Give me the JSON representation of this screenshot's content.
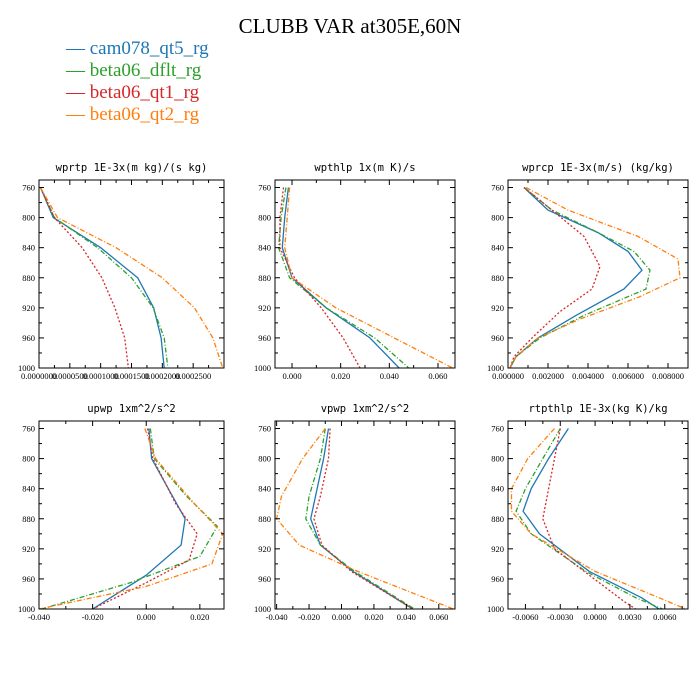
{
  "title": "CLUBB VAR at305E,60N",
  "legend": [
    {
      "name": "cam078_qt5_rg",
      "color": "#1f77b4"
    },
    {
      "name": "beta06_dflt_rg",
      "color": "#2ca02c"
    },
    {
      "name": "beta06_qt1_rg",
      "color": "#d62728"
    },
    {
      "name": "beta06_qt2_rg",
      "color": "#ff7f0e"
    }
  ],
  "chart_data": [
    {
      "type": "line",
      "title": "wprtp  1E-3x(m kg)/(s kg)",
      "xlim": [
        0.0,
        0.0003
      ],
      "ylim": [
        1000,
        750
      ],
      "xticks": [
        "0.0000000",
        "0.0000500",
        "0.0001000",
        "0.0001500",
        "0.0002000",
        "0.0002500"
      ],
      "xtick_values": [
        0,
        5e-05,
        0.0001,
        0.00015,
        0.0002,
        0.00025
      ],
      "yticks": [
        "760",
        "800",
        "840",
        "880",
        "920",
        "960",
        "1000"
      ],
      "ytick_values": [
        760,
        800,
        840,
        880,
        920,
        960,
        1000
      ],
      "series": [
        {
          "color": "#1f77b4",
          "dash": "",
          "points": [
            [
              2.5e-06,
              760
            ],
            [
              2.3e-05,
              800
            ],
            [
              0.0001,
              840
            ],
            [
              0.00016,
              880
            ],
            [
              0.000186,
              920
            ],
            [
              0.000198,
              960
            ],
            [
              0.000203,
              1000
            ]
          ]
        },
        {
          "color": "#2ca02c",
          "dash": "5,2,1,2",
          "points": [
            [
              2.5e-06,
              760
            ],
            [
              2.5e-05,
              800
            ],
            [
              9.5e-05,
              840
            ],
            [
              0.00015,
              880
            ],
            [
              0.000185,
              920
            ],
            [
              0.000203,
              960
            ],
            [
              0.000209,
              1000
            ]
          ]
        },
        {
          "color": "#d62728",
          "dash": "2,2",
          "points": [
            [
              2.5e-06,
              760
            ],
            [
              2.5e-05,
              800
            ],
            [
              7e-05,
              840
            ],
            [
              0.000102,
              880
            ],
            [
              0.000123,
              920
            ],
            [
              0.000139,
              960
            ],
            [
              0.000145,
              1000
            ]
          ]
        },
        {
          "color": "#ff7f0e",
          "dash": "5,2,1,2",
          "points": [
            [
              2.5e-06,
              760
            ],
            [
              3e-05,
              800
            ],
            [
              0.000125,
              840
            ],
            [
              0.0002,
              880
            ],
            [
              0.000252,
              920
            ],
            [
              0.000282,
              960
            ],
            [
              0.000298,
              1000
            ]
          ]
        }
      ]
    },
    {
      "type": "line",
      "title": "wpthlp  1x(m K)/s",
      "xlim": [
        -0.007,
        0.067
      ],
      "ylim": [
        1000,
        750
      ],
      "xticks": [
        "0.000",
        "0.020",
        "0.040",
        "0.060"
      ],
      "xtick_values": [
        0,
        0.02,
        0.04,
        0.06
      ],
      "yticks": [
        "760",
        "800",
        "840",
        "880",
        "920",
        "960",
        "1000"
      ],
      "ytick_values": [
        760,
        800,
        840,
        880,
        920,
        960,
        1000
      ],
      "series": [
        {
          "color": "#1f77b4",
          "dash": "",
          "points": [
            [
              -0.0015,
              760
            ],
            [
              -0.003,
              800
            ],
            [
              -0.004,
              840
            ],
            [
              0.0,
              880
            ],
            [
              0.014,
              920
            ],
            [
              0.032,
              960
            ],
            [
              0.044,
              1000
            ]
          ]
        },
        {
          "color": "#2ca02c",
          "dash": "5,2,1,2",
          "points": [
            [
              -0.0025,
              760
            ],
            [
              -0.0045,
              800
            ],
            [
              -0.0055,
              840
            ],
            [
              -0.001,
              880
            ],
            [
              0.014,
              920
            ],
            [
              0.034,
              960
            ],
            [
              0.048,
              1000
            ]
          ]
        },
        {
          "color": "#d62728",
          "dash": "2,2",
          "points": [
            [
              -0.0035,
              760
            ],
            [
              -0.005,
              800
            ],
            [
              -0.005,
              840
            ],
            [
              0.001,
              880
            ],
            [
              0.012,
              920
            ],
            [
              0.021,
              960
            ],
            [
              0.028,
              1000
            ]
          ]
        },
        {
          "color": "#ff7f0e",
          "dash": "5,2,1,2",
          "points": [
            [
              -0.001,
              760
            ],
            [
              -0.002,
              800
            ],
            [
              -0.003,
              840
            ],
            [
              0.0,
              880
            ],
            [
              0.018,
              920
            ],
            [
              0.042,
              960
            ],
            [
              0.066,
              1000
            ]
          ]
        }
      ]
    },
    {
      "type": "line",
      "title": "wprcp  1E-3x(m/s) (kg/kg)",
      "xlim": [
        0.0,
        0.009
      ],
      "ylim": [
        1000,
        750
      ],
      "xticks": [
        "0.000000",
        "0.002000",
        "0.004000",
        "0.006000",
        "0.008000"
      ],
      "xtick_values": [
        0,
        0.002,
        0.004,
        0.006,
        0.008
      ],
      "yticks": [
        "760",
        "800",
        "840",
        "880",
        "920",
        "960",
        "1000"
      ],
      "ytick_values": [
        760,
        800,
        840,
        880,
        920,
        960,
        1000
      ],
      "series": [
        {
          "color": "#1f77b4",
          "dash": "",
          "points": [
            [
              0.0008,
              760
            ],
            [
              0.002,
              790
            ],
            [
              0.0045,
              820
            ],
            [
              0.006,
              845
            ],
            [
              0.0067,
              870
            ],
            [
              0.0058,
              895
            ],
            [
              0.0034,
              930
            ],
            [
              0.0015,
              960
            ],
            [
              0.0004,
              985
            ],
            [
              0.0001,
              1000
            ]
          ]
        },
        {
          "color": "#2ca02c",
          "dash": "5,2,1,2",
          "points": [
            [
              0.0008,
              760
            ],
            [
              0.0022,
              790
            ],
            [
              0.0045,
              820
            ],
            [
              0.0063,
              845
            ],
            [
              0.0071,
              870
            ],
            [
              0.0069,
              895
            ],
            [
              0.0038,
              930
            ],
            [
              0.0016,
              960
            ],
            [
              0.0004,
              985
            ],
            [
              0.0001,
              1000
            ]
          ]
        },
        {
          "color": "#d62728",
          "dash": "2,2",
          "points": [
            [
              0.0008,
              760
            ],
            [
              0.0022,
              790
            ],
            [
              0.0038,
              825
            ],
            [
              0.0046,
              865
            ],
            [
              0.0042,
              895
            ],
            [
              0.0026,
              925
            ],
            [
              0.0012,
              960
            ],
            [
              0.0003,
              985
            ],
            [
              0.0001,
              1000
            ]
          ]
        },
        {
          "color": "#ff7f0e",
          "dash": "5,2,1,2",
          "points": [
            [
              0.0009,
              760
            ],
            [
              0.003,
              790
            ],
            [
              0.0065,
              825
            ],
            [
              0.0085,
              855
            ],
            [
              0.0086,
              880
            ],
            [
              0.0066,
              905
            ],
            [
              0.0036,
              935
            ],
            [
              0.0015,
              960
            ],
            [
              0.0004,
              985
            ],
            [
              0.0001,
              1000
            ]
          ]
        }
      ]
    },
    {
      "type": "line",
      "title": "upwp  1xm^2/s^2",
      "xlim": [
        -0.04,
        0.029
      ],
      "ylim": [
        1000,
        750
      ],
      "xticks": [
        "-0.040",
        "-0.020",
        "0.000",
        "0.020"
      ],
      "xtick_values": [
        -0.04,
        -0.02,
        0,
        0.02
      ],
      "yticks": [
        "760",
        "800",
        "840",
        "880",
        "920",
        "960",
        "1000"
      ],
      "ytick_values": [
        760,
        800,
        840,
        880,
        920,
        960,
        1000
      ],
      "series": [
        {
          "color": "#1f77b4",
          "dash": "",
          "points": [
            [
              0.001,
              760
            ],
            [
              0.002,
              800
            ],
            [
              0.009,
              845
            ],
            [
              0.0145,
              880
            ],
            [
              0.013,
              915
            ],
            [
              0.0,
              955
            ],
            [
              -0.02,
              1000
            ]
          ]
        },
        {
          "color": "#2ca02c",
          "dash": "5,2,1,2",
          "points": [
            [
              0.0015,
              760
            ],
            [
              0.003,
              800
            ],
            [
              0.015,
              850
            ],
            [
              0.0265,
              890
            ],
            [
              0.02,
              930
            ],
            [
              -0.006,
              965
            ],
            [
              -0.039,
              1000
            ]
          ]
        },
        {
          "color": "#d62728",
          "dash": "2,2",
          "points": [
            [
              0.0005,
              760
            ],
            [
              0.0025,
              800
            ],
            [
              0.011,
              860
            ],
            [
              0.019,
              900
            ],
            [
              0.016,
              935
            ],
            [
              0.0,
              965
            ],
            [
              -0.02,
              1000
            ]
          ]
        },
        {
          "color": "#ff7f0e",
          "dash": "5,2,1,2",
          "points": [
            [
              -0.0005,
              760
            ],
            [
              0.0035,
              800
            ],
            [
              0.018,
              860
            ],
            [
              0.0285,
              900
            ],
            [
              0.0245,
              940
            ],
            [
              0.0,
              970
            ],
            [
              -0.04,
              1000
            ]
          ]
        }
      ]
    },
    {
      "type": "line",
      "title": "vpwp  1xm^2/s^2",
      "xlim": [
        -0.041,
        0.07
      ],
      "ylim": [
        1000,
        750
      ],
      "xticks": [
        "-0.040",
        "-0.020",
        "0.000",
        "0.020",
        "0.040",
        "0.060"
      ],
      "xtick_values": [
        -0.04,
        -0.02,
        0,
        0.02,
        0.04,
        0.06
      ],
      "yticks": [
        "760",
        "800",
        "840",
        "880",
        "920",
        "960",
        "1000"
      ],
      "ytick_values": [
        760,
        800,
        840,
        880,
        920,
        960,
        1000
      ],
      "series": [
        {
          "color": "#1f77b4",
          "dash": "",
          "points": [
            [
              -0.008,
              760
            ],
            [
              -0.011,
              800
            ],
            [
              -0.016,
              850
            ],
            [
              -0.019,
              880
            ],
            [
              -0.013,
              915
            ],
            [
              0.007,
              950
            ],
            [
              0.044,
              1000
            ]
          ]
        },
        {
          "color": "#2ca02c",
          "dash": "5,2,1,2",
          "points": [
            [
              -0.01,
              760
            ],
            [
              -0.013,
              800
            ],
            [
              -0.02,
              850
            ],
            [
              -0.022,
              880
            ],
            [
              -0.013,
              915
            ],
            [
              0.008,
              950
            ],
            [
              0.045,
              1000
            ]
          ]
        },
        {
          "color": "#d62728",
          "dash": "2,2",
          "points": [
            [
              -0.007,
              760
            ],
            [
              -0.008,
              800
            ],
            [
              -0.013,
              850
            ],
            [
              -0.017,
              880
            ],
            [
              -0.012,
              915
            ],
            [
              0.006,
              950
            ],
            [
              0.044,
              1000
            ]
          ]
        },
        {
          "color": "#ff7f0e",
          "dash": "5,2,1,2",
          "points": [
            [
              -0.01,
              760
            ],
            [
              -0.024,
              800
            ],
            [
              -0.037,
              850
            ],
            [
              -0.04,
              880
            ],
            [
              -0.026,
              915
            ],
            [
              0.01,
              950
            ],
            [
              0.069,
              1000
            ]
          ]
        }
      ]
    },
    {
      "type": "line",
      "title": "rtpthlp  1E-3x(kg K)/kg",
      "xlim": [
        -0.0075,
        0.008
      ],
      "ylim": [
        1000,
        750
      ],
      "xticks": [
        "-0.0060",
        "-0.0030",
        "0.0000",
        "0.0030",
        "0.0060"
      ],
      "xtick_values": [
        -0.006,
        -0.003,
        0,
        0.003,
        0.006
      ],
      "yticks": [
        "760",
        "800",
        "840",
        "880",
        "920",
        "960",
        "1000"
      ],
      "ytick_values": [
        760,
        800,
        840,
        880,
        920,
        960,
        1000
      ],
      "series": [
        {
          "color": "#1f77b4",
          "dash": "",
          "points": [
            [
              -0.0023,
              760
            ],
            [
              -0.004,
              800
            ],
            [
              -0.0055,
              840
            ],
            [
              -0.0062,
              870
            ],
            [
              -0.0048,
              900
            ],
            [
              -0.0005,
              950
            ],
            [
              0.004,
              985
            ],
            [
              0.0055,
              1000
            ]
          ]
        },
        {
          "color": "#2ca02c",
          "dash": "5,2,1,2",
          "points": [
            [
              -0.003,
              760
            ],
            [
              -0.0045,
              800
            ],
            [
              -0.006,
              840
            ],
            [
              -0.0068,
              870
            ],
            [
              -0.0055,
              900
            ],
            [
              -0.0008,
              950
            ],
            [
              0.0035,
              985
            ],
            [
              0.0058,
              1000
            ]
          ]
        },
        {
          "color": "#d62728",
          "dash": "2,2",
          "points": [
            [
              -0.003,
              760
            ],
            [
              -0.0035,
              800
            ],
            [
              -0.004,
              840
            ],
            [
              -0.0045,
              880
            ],
            [
              -0.0035,
              920
            ],
            [
              -0.0005,
              955
            ],
            [
              0.0025,
              990
            ],
            [
              0.0035,
              1000
            ]
          ]
        },
        {
          "color": "#ff7f0e",
          "dash": "5,2,1,2",
          "points": [
            [
              -0.0035,
              760
            ],
            [
              -0.0058,
              800
            ],
            [
              -0.0072,
              840
            ],
            [
              -0.0072,
              870
            ],
            [
              -0.0055,
              900
            ],
            [
              0.0,
              950
            ],
            [
              0.0055,
              985
            ],
            [
              0.0078,
              1000
            ]
          ]
        }
      ]
    }
  ]
}
